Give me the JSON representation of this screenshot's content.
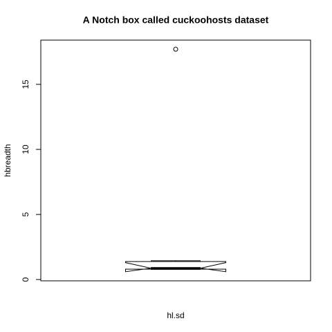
{
  "chart_data": {
    "type": "box",
    "title": "A Notch box called cuckoohosts dataset",
    "x_label": "hl.sd",
    "y_label": "hbreadth",
    "ylim": [
      -0.1,
      18.4
    ],
    "yticks": [
      0,
      5,
      10,
      15
    ],
    "boxes": [
      {
        "whisker_low": 0.78,
        "q1": 0.8,
        "median": 0.87,
        "q3": 1.38,
        "whisker_high": 1.45,
        "notch_low": 0.6,
        "notch_high": 1.3,
        "outliers": [
          17.7
        ]
      }
    ]
  }
}
